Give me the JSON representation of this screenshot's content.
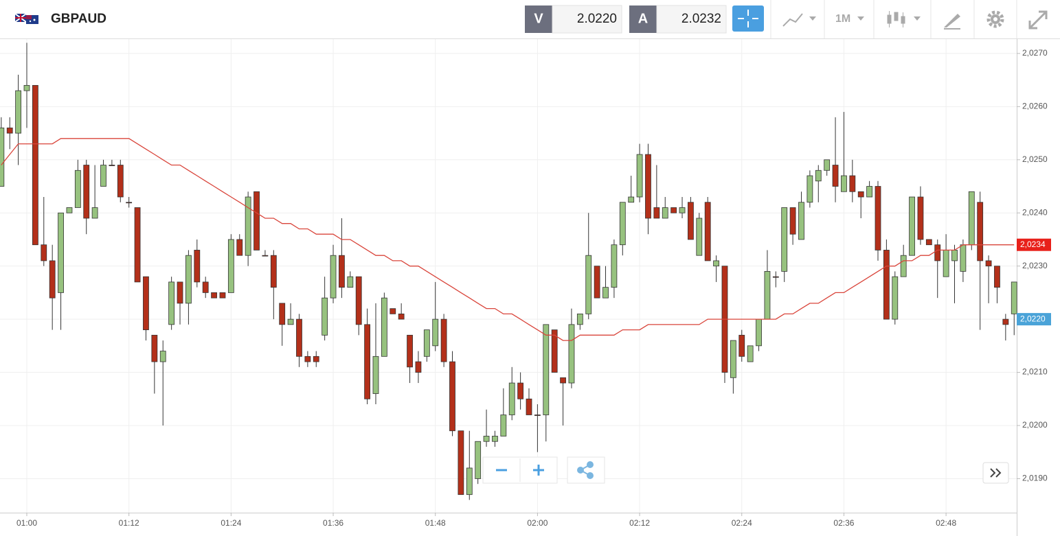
{
  "header": {
    "symbol": "GBPAUD",
    "sell_label": "V",
    "sell_price": "2.0220",
    "buy_label": "A",
    "buy_price": "2.0232",
    "timeframe": "1M"
  },
  "chart_data": {
    "type": "candlestick",
    "categories": [
      null,
      null,
      null,
      "01:00",
      null,
      null,
      null,
      null,
      null,
      null,
      null,
      null,
      null,
      null,
      null,
      "01:12",
      null,
      null,
      null,
      null,
      null,
      null,
      null,
      null,
      null,
      null,
      null,
      "01:24",
      null,
      null,
      null,
      null,
      null,
      null,
      null,
      null,
      null,
      null,
      null,
      "01:36",
      null,
      null,
      null,
      null,
      null,
      null,
      null,
      null,
      null,
      null,
      null,
      "01:48",
      null,
      null,
      null,
      null,
      null,
      null,
      null,
      null,
      null,
      null,
      null,
      "02:00",
      null,
      null,
      null,
      null,
      null,
      null,
      null,
      null,
      null,
      null,
      null,
      "02:12",
      null,
      null,
      null,
      null,
      null,
      null,
      null,
      null,
      null,
      null,
      null,
      "02:24",
      null,
      null,
      null,
      null,
      null,
      null,
      null,
      null,
      null,
      null,
      null,
      "02:36",
      null,
      null,
      null,
      null,
      null,
      null,
      null,
      null,
      null,
      null,
      null,
      "02:48",
      null,
      null,
      null,
      null,
      null,
      null,
      null,
      null
    ],
    "open": [
      2.0245,
      2.0256,
      2.0255,
      2.0263,
      2.0264,
      2.0234,
      2.0231,
      2.0225,
      2.024,
      2.0241,
      2.0249,
      2.0239,
      2.0245,
      2.0249,
      2.0249,
      2.0242,
      2.0241,
      2.0228,
      2.0217,
      2.0212,
      2.0219,
      2.0227,
      2.0223,
      2.0233,
      2.0227,
      2.0225,
      2.0225,
      2.0225,
      2.0235,
      2.0232,
      2.0244,
      2.0232,
      2.0232,
      2.0223,
      2.0219,
      2.022,
      2.0213,
      2.0213,
      2.0217,
      2.0224,
      2.0232,
      2.0226,
      2.0228,
      2.0219,
      2.0206,
      2.0213,
      2.0222,
      2.0221,
      2.0217,
      2.0212,
      2.0213,
      2.0215,
      2.022,
      2.0212,
      2.0199,
      2.0187,
      2.019,
      2.0197,
      2.0197,
      2.0198,
      2.0202,
      2.0208,
      2.0205,
      2.0202,
      2.0202,
      2.0218,
      2.0209,
      2.0208,
      2.0219,
      2.0221,
      2.023,
      2.0224,
      2.0226,
      2.0234,
      2.0242,
      2.0243,
      2.0251,
      2.0241,
      2.0239,
      2.0241,
      2.024,
      2.0242,
      2.0232,
      2.0242,
      2.023,
      2.023,
      2.0209,
      2.0217,
      2.0212,
      2.0215,
      2.022,
      2.0228,
      2.0229,
      2.0241,
      2.0235,
      2.0242,
      2.0246,
      2.0248,
      2.0249,
      2.0244,
      2.0247,
      2.0244,
      2.0243,
      2.0245,
      2.0233,
      2.022,
      2.0228,
      2.0232,
      2.0243,
      2.0235,
      2.0234,
      2.0228,
      2.0231,
      2.0229,
      2.0234,
      2.0242,
      2.0231,
      2.023,
      2.022,
      2.0221
    ],
    "high": [
      2.0258,
      2.0258,
      2.0266,
      2.0272,
      2.0264,
      2.0243,
      2.0234,
      2.024,
      2.0241,
      2.025,
      2.025,
      2.0249,
      2.025,
      2.025,
      2.025,
      2.0243,
      2.0241,
      2.0228,
      2.0217,
      2.0216,
      2.0228,
      2.0227,
      2.0233,
      2.0235,
      2.0228,
      2.0225,
      2.0225,
      2.0236,
      2.0236,
      2.0244,
      2.0244,
      2.0233,
      2.0233,
      2.0223,
      2.0223,
      2.0221,
      2.0214,
      2.0214,
      2.0228,
      2.0234,
      2.0239,
      2.0229,
      2.0228,
      2.0222,
      2.0223,
      2.0225,
      2.0222,
      2.0223,
      2.0217,
      2.0214,
      2.0218,
      2.0227,
      2.0221,
      2.0214,
      2.0199,
      2.0199,
      2.0197,
      2.0203,
      2.0199,
      2.0207,
      2.0211,
      2.021,
      2.0207,
      2.0204,
      2.0219,
      2.0218,
      2.0209,
      2.0222,
      2.0221,
      2.024,
      2.023,
      2.023,
      2.0235,
      2.0242,
      2.0247,
      2.0253,
      2.0253,
      2.0249,
      2.0243,
      2.0241,
      2.0243,
      2.0243,
      2.024,
      2.0243,
      2.0232,
      2.023,
      2.0216,
      2.0218,
      2.0215,
      2.022,
      2.0233,
      2.0229,
      2.0241,
      2.0241,
      2.0244,
      2.0248,
      2.0249,
      2.025,
      2.0258,
      2.0259,
      2.025,
      2.0244,
      2.0246,
      2.0246,
      2.0235,
      2.0229,
      2.0234,
      2.0243,
      2.0245,
      2.0235,
      2.0235,
      2.0236,
      2.0234,
      2.0235,
      2.0244,
      2.0244,
      2.0232,
      2.023,
      2.0221,
      2.0227
    ],
    "low": [
      2.0245,
      2.0252,
      2.0249,
      2.0256,
      2.0234,
      2.023,
      2.0218,
      2.0218,
      2.024,
      2.0241,
      2.0236,
      2.0239,
      2.0245,
      2.0249,
      2.0242,
      2.0241,
      2.0227,
      2.0216,
      2.0206,
      2.02,
      2.0218,
      2.0219,
      2.0219,
      2.0226,
      2.0224,
      2.0224,
      2.0224,
      2.0225,
      2.0232,
      2.023,
      2.0233,
      2.0232,
      2.022,
      2.0215,
      2.0219,
      2.0211,
      2.0211,
      2.0211,
      2.0216,
      2.0223,
      2.0224,
      2.0226,
      2.0217,
      2.0204,
      2.0204,
      2.0213,
      2.0221,
      2.022,
      2.0208,
      2.0208,
      2.0212,
      2.0214,
      2.0211,
      2.0198,
      2.0187,
      2.0186,
      2.0189,
      2.0196,
      2.0196,
      2.0198,
      2.0201,
      2.0203,
      2.0202,
      2.0195,
      2.0197,
      2.021,
      2.02,
      2.0207,
      2.0218,
      2.022,
      2.0224,
      2.0224,
      2.0224,
      2.0232,
      2.0242,
      2.0242,
      2.0236,
      2.0239,
      2.0239,
      2.024,
      2.0239,
      2.0235,
      2.0232,
      2.0231,
      2.0227,
      2.0208,
      2.0206,
      2.0212,
      2.0212,
      2.0214,
      2.022,
      2.0226,
      2.0227,
      2.0234,
      2.0235,
      2.0241,
      2.0242,
      2.0247,
      2.0242,
      2.0244,
      2.0242,
      2.0239,
      2.0243,
      2.0231,
      2.022,
      2.0219,
      2.0228,
      2.0232,
      2.0234,
      2.0234,
      2.0224,
      2.0228,
      2.0223,
      2.0227,
      2.0233,
      2.0218,
      2.0223,
      2.0223,
      2.0216,
      2.0217
    ],
    "close": [
      2.0256,
      2.0255,
      2.0263,
      2.0264,
      2.0234,
      2.0231,
      2.0224,
      2.024,
      2.0241,
      2.0248,
      2.0239,
      2.0241,
      2.0249,
      2.0249,
      2.0243,
      2.0242,
      2.0227,
      2.0218,
      2.0212,
      2.0214,
      2.0227,
      2.0223,
      2.0232,
      2.0227,
      2.0225,
      2.0224,
      2.0224,
      2.0235,
      2.0232,
      2.0243,
      2.0233,
      2.0232,
      2.0226,
      2.0219,
      2.022,
      2.0213,
      2.0212,
      2.0212,
      2.0224,
      2.0232,
      2.0226,
      2.0228,
      2.0219,
      2.0205,
      2.0213,
      2.0224,
      2.0221,
      2.022,
      2.0211,
      2.021,
      2.0218,
      2.022,
      2.0212,
      2.0199,
      2.0187,
      2.0192,
      2.0197,
      2.0198,
      2.0198,
      2.0202,
      2.0208,
      2.0205,
      2.0202,
      2.0202,
      2.0219,
      2.021,
      2.0208,
      2.0219,
      2.0221,
      2.0232,
      2.0224,
      2.0226,
      2.0234,
      2.0242,
      2.0243,
      2.0251,
      2.0239,
      2.0239,
      2.0241,
      2.024,
      2.0241,
      2.0235,
      2.0239,
      2.0231,
      2.0231,
      2.021,
      2.0216,
      2.0213,
      2.0215,
      2.022,
      2.0229,
      2.0228,
      2.0241,
      2.0236,
      2.0242,
      2.0247,
      2.0248,
      2.025,
      2.0245,
      2.0247,
      2.0244,
      2.0243,
      2.0245,
      2.0233,
      2.022,
      2.0228,
      2.0232,
      2.0243,
      2.0235,
      2.0234,
      2.0231,
      2.0233,
      2.0233,
      2.0234,
      2.0244,
      2.0231,
      2.023,
      2.0226,
      2.0219,
      2.0227
    ],
    "moving_average": [
      2.0249,
      2.0251,
      2.0253,
      2.0253,
      2.0253,
      2.0253,
      2.0253,
      2.0254,
      2.0254,
      2.0254,
      2.0254,
      2.0254,
      2.0254,
      2.0254,
      2.0254,
      2.0254,
      2.0253,
      2.0252,
      2.0251,
      2.025,
      2.0249,
      2.0249,
      2.0248,
      2.0247,
      2.0246,
      2.0245,
      2.0244,
      2.0243,
      2.0242,
      2.0241,
      2.024,
      2.0239,
      2.0239,
      2.0238,
      2.0238,
      2.0237,
      2.0237,
      2.0236,
      2.0236,
      2.0236,
      2.0235,
      2.0235,
      2.0234,
      2.0233,
      2.0232,
      2.0232,
      2.0231,
      2.0231,
      2.023,
      2.023,
      2.0229,
      2.0228,
      2.0227,
      2.0226,
      2.0225,
      2.0224,
      2.0223,
      2.0222,
      2.0222,
      2.0221,
      2.0221,
      2.022,
      2.0219,
      2.0218,
      2.0217,
      2.0217,
      2.0216,
      2.0216,
      2.0217,
      2.0217,
      2.0217,
      2.0217,
      2.0217,
      2.0218,
      2.0218,
      2.0218,
      2.0219,
      2.0219,
      2.0219,
      2.0219,
      2.0219,
      2.0219,
      2.0219,
      2.022,
      2.022,
      2.022,
      2.022,
      2.022,
      2.022,
      2.022,
      2.022,
      2.022,
      2.0221,
      2.0221,
      2.0222,
      2.0223,
      2.0223,
      2.0224,
      2.0225,
      2.0225,
      2.0226,
      2.0227,
      2.0228,
      2.0229,
      2.023,
      2.023,
      2.0231,
      2.0231,
      2.0232,
      2.0232,
      2.0233,
      2.0233,
      2.0233,
      2.0234,
      2.0234,
      2.0234,
      2.0234,
      2.0234,
      2.0234,
      2.0234
    ],
    "up_color": "#97c27f",
    "down_color": "#b3301a",
    "ma_color": "#d9443a",
    "ylim": [
      2.01836,
      2.02727
    ],
    "yticks": [
      {
        "value": 2.019,
        "label": "2,0190"
      },
      {
        "value": 2.02,
        "label": "2,0200"
      },
      {
        "value": 2.021,
        "label": "2,0210"
      },
      {
        "value": 2.022,
        "label": "2,0220"
      },
      {
        "value": 2.023,
        "label": "2,0230"
      },
      {
        "value": 2.024,
        "label": "2,0240"
      },
      {
        "value": 2.025,
        "label": "2,0250"
      },
      {
        "value": 2.026,
        "label": "2,0260"
      },
      {
        "value": 2.027,
        "label": "2,0270"
      }
    ],
    "price_tags": [
      {
        "value": 2.0234,
        "label": "2,0234",
        "color": "#e8201a"
      },
      {
        "value": 2.022,
        "label": "2,0220",
        "color": "#4aa3d8"
      }
    ],
    "grid": true
  }
}
